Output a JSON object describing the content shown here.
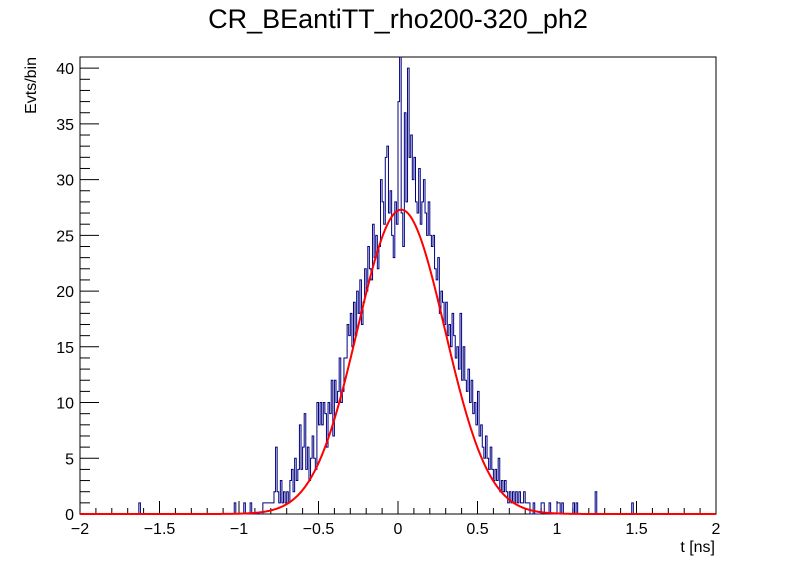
{
  "chart_data": {
    "type": "histogram",
    "title": "CR_BEantiTT_rho200-320_ph2",
    "xlabel": "t [ns]",
    "ylabel": "Evts/bin",
    "xlim": [
      -2,
      2
    ],
    "ylim": [
      0,
      41
    ],
    "xticks": [
      -2,
      -1.5,
      -1,
      -0.5,
      0,
      0.5,
      1,
      1.5,
      2
    ],
    "yticks": [
      0,
      5,
      10,
      15,
      20,
      25,
      30,
      35,
      40
    ],
    "bin_width": 0.01,
    "grid": false,
    "colors": {
      "histogram": "#000080",
      "fit": "#ff0000"
    },
    "series": [
      {
        "name": "histogram",
        "bins": [
          [
            -1.63,
            1
          ],
          [
            -1.03,
            1
          ],
          [
            -0.97,
            1
          ],
          [
            -0.93,
            1
          ],
          [
            -0.85,
            1
          ],
          [
            -0.84,
            1
          ],
          [
            -0.83,
            1
          ],
          [
            -0.82,
            1
          ],
          [
            -0.81,
            1
          ],
          [
            -0.8,
            1
          ],
          [
            -0.79,
            1
          ],
          [
            -0.78,
            2
          ],
          [
            -0.77,
            6
          ],
          [
            -0.76,
            2
          ],
          [
            -0.75,
            1
          ],
          [
            -0.74,
            3
          ],
          [
            -0.73,
            1
          ],
          [
            -0.72,
            2
          ],
          [
            -0.71,
            1
          ],
          [
            -0.7,
            2
          ],
          [
            -0.69,
            1
          ],
          [
            -0.68,
            3
          ],
          [
            -0.67,
            4
          ],
          [
            -0.66,
            2
          ],
          [
            -0.65,
            5
          ],
          [
            -0.64,
            3
          ],
          [
            -0.63,
            4
          ],
          [
            -0.62,
            8
          ],
          [
            -0.61,
            4
          ],
          [
            -0.6,
            6
          ],
          [
            -0.59,
            9
          ],
          [
            -0.58,
            4
          ],
          [
            -0.57,
            6
          ],
          [
            -0.56,
            3
          ],
          [
            -0.55,
            5
          ],
          [
            -0.54,
            7
          ],
          [
            -0.53,
            5
          ],
          [
            -0.52,
            4
          ],
          [
            -0.51,
            10
          ],
          [
            -0.5,
            8
          ],
          [
            -0.49,
            10
          ],
          [
            -0.48,
            8
          ],
          [
            -0.47,
            10
          ],
          [
            -0.46,
            9
          ],
          [
            -0.45,
            6
          ],
          [
            -0.44,
            10
          ],
          [
            -0.43,
            9
          ],
          [
            -0.42,
            12
          ],
          [
            -0.41,
            7
          ],
          [
            -0.4,
            12
          ],
          [
            -0.39,
            10
          ],
          [
            -0.38,
            11
          ],
          [
            -0.37,
            14
          ],
          [
            -0.36,
            10
          ],
          [
            -0.35,
            11
          ],
          [
            -0.34,
            14
          ],
          [
            -0.33,
            14
          ],
          [
            -0.32,
            17
          ],
          [
            -0.31,
            16
          ],
          [
            -0.3,
            18
          ],
          [
            -0.29,
            15
          ],
          [
            -0.28,
            19
          ],
          [
            -0.27,
            16
          ],
          [
            -0.26,
            20
          ],
          [
            -0.25,
            18
          ],
          [
            -0.24,
            21
          ],
          [
            -0.23,
            17
          ],
          [
            -0.22,
            19
          ],
          [
            -0.21,
            22
          ],
          [
            -0.2,
            20
          ],
          [
            -0.19,
            24
          ],
          [
            -0.18,
            22
          ],
          [
            -0.17,
            21
          ],
          [
            -0.16,
            26
          ],
          [
            -0.15,
            23
          ],
          [
            -0.14,
            25
          ],
          [
            -0.13,
            22
          ],
          [
            -0.12,
            24
          ],
          [
            -0.11,
            30
          ],
          [
            -0.1,
            28
          ],
          [
            -0.09,
            26
          ],
          [
            -0.08,
            32
          ],
          [
            -0.07,
            33
          ],
          [
            -0.06,
            27
          ],
          [
            -0.05,
            29
          ],
          [
            -0.04,
            25
          ],
          [
            -0.03,
            23
          ],
          [
            -0.02,
            28
          ],
          [
            -0.01,
            26
          ],
          [
            0.0,
            37
          ],
          [
            0.01,
            41
          ],
          [
            0.02,
            27
          ],
          [
            0.03,
            24
          ],
          [
            0.04,
            36
          ],
          [
            0.05,
            28
          ],
          [
            0.06,
            40
          ],
          [
            0.07,
            32
          ],
          [
            0.08,
            34
          ],
          [
            0.09,
            30
          ],
          [
            0.1,
            32
          ],
          [
            0.11,
            28
          ],
          [
            0.12,
            27
          ],
          [
            0.13,
            31
          ],
          [
            0.14,
            26
          ],
          [
            0.15,
            28
          ],
          [
            0.16,
            30
          ],
          [
            0.17,
            27
          ],
          [
            0.18,
            25
          ],
          [
            0.19,
            28
          ],
          [
            0.2,
            25
          ],
          [
            0.21,
            24
          ],
          [
            0.22,
            25
          ],
          [
            0.23,
            22
          ],
          [
            0.24,
            21
          ],
          [
            0.25,
            23
          ],
          [
            0.26,
            18
          ],
          [
            0.27,
            20
          ],
          [
            0.28,
            19
          ],
          [
            0.29,
            17
          ],
          [
            0.3,
            19
          ],
          [
            0.31,
            16
          ],
          [
            0.32,
            17
          ],
          [
            0.33,
            15
          ],
          [
            0.34,
            18
          ],
          [
            0.35,
            16
          ],
          [
            0.36,
            14
          ],
          [
            0.37,
            15
          ],
          [
            0.38,
            13
          ],
          [
            0.39,
            18
          ],
          [
            0.4,
            12
          ],
          [
            0.41,
            15
          ],
          [
            0.42,
            12
          ],
          [
            0.43,
            11
          ],
          [
            0.44,
            13
          ],
          [
            0.45,
            10
          ],
          [
            0.46,
            12
          ],
          [
            0.47,
            9
          ],
          [
            0.48,
            10
          ],
          [
            0.49,
            8
          ],
          [
            0.5,
            11
          ],
          [
            0.51,
            7
          ],
          [
            0.52,
            8
          ],
          [
            0.53,
            6
          ],
          [
            0.54,
            5
          ],
          [
            0.55,
            7
          ],
          [
            0.56,
            5
          ],
          [
            0.57,
            4
          ],
          [
            0.58,
            6
          ],
          [
            0.59,
            4
          ],
          [
            0.6,
            3
          ],
          [
            0.61,
            4
          ],
          [
            0.62,
            3
          ],
          [
            0.63,
            5
          ],
          [
            0.64,
            2
          ],
          [
            0.65,
            3
          ],
          [
            0.66,
            2
          ],
          [
            0.67,
            3
          ],
          [
            0.68,
            2
          ],
          [
            0.69,
            1
          ],
          [
            0.7,
            2
          ],
          [
            0.71,
            1
          ],
          [
            0.72,
            2
          ],
          [
            0.73,
            1
          ],
          [
            0.74,
            2
          ],
          [
            0.75,
            1
          ],
          [
            0.76,
            2
          ],
          [
            0.77,
            1
          ],
          [
            0.78,
            1
          ],
          [
            0.79,
            2
          ],
          [
            0.8,
            1
          ],
          [
            0.81,
            1
          ],
          [
            0.82,
            1
          ],
          [
            0.85,
            1
          ],
          [
            0.9,
            1
          ],
          [
            0.91,
            1
          ],
          [
            0.95,
            1
          ],
          [
            1.0,
            1
          ],
          [
            1.01,
            1
          ],
          [
            1.03,
            1
          ],
          [
            1.1,
            1
          ],
          [
            1.12,
            1
          ],
          [
            1.24,
            2
          ],
          [
            1.47,
            1
          ]
        ]
      },
      {
        "name": "fit",
        "function": "gaus",
        "amplitude": 27.3,
        "mean": 0.02,
        "sigma": 0.275
      }
    ]
  }
}
